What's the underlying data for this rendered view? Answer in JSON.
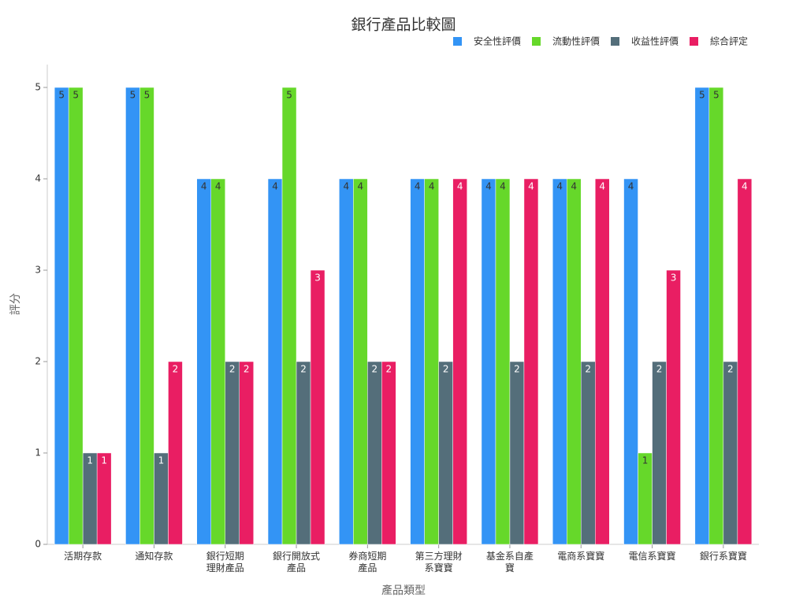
{
  "chart_data": {
    "type": "bar",
    "title": "銀行產品比較圖",
    "x_label": "產品類型",
    "y_label": "評分",
    "categories": [
      "活期存款",
      "通知存款",
      "銀行短期\n理財產品",
      "銀行開放式\n產品",
      "券商短期\n產品",
      "第三方理財\n系寶寶",
      "基金系自產\n寶",
      "電商系寶寶",
      "電信系寶寶",
      "銀行系寶寶"
    ],
    "series": [
      {
        "name": "安全性評價",
        "color": "#3394f5",
        "values": [
          5,
          5,
          4,
          4,
          4,
          4,
          4,
          4,
          4,
          5
        ]
      },
      {
        "name": "流動性評價",
        "color": "#66d82a",
        "values": [
          5,
          5,
          4,
          5,
          4,
          4,
          4,
          4,
          1,
          5
        ]
      },
      {
        "name": "收益性評價",
        "color": "#546e7a",
        "values": [
          1,
          1,
          2,
          2,
          2,
          2,
          2,
          2,
          2,
          2
        ]
      },
      {
        "name": "綜合評定",
        "color": "#e91e63",
        "values": [
          1,
          2,
          2,
          3,
          2,
          4,
          4,
          4,
          3,
          4
        ]
      }
    ],
    "ylim": [
      0,
      5.25
    ],
    "yticks": [
      0,
      1,
      2,
      3,
      4,
      5
    ],
    "legend": "top-right"
  }
}
